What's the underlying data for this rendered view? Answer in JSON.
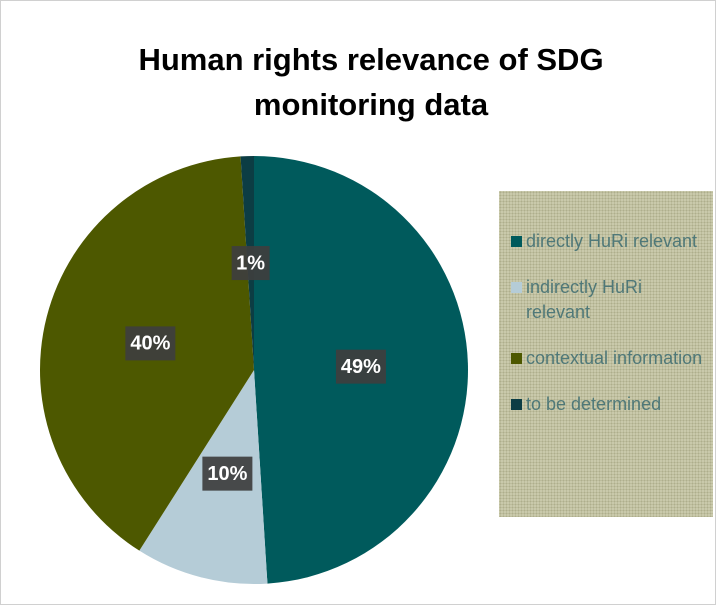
{
  "chart_data": {
    "type": "pie",
    "title": "Human rights relevance of SDG monitoring data",
    "categories": [
      "directly HuRi relevant",
      "indirectly HuRi relevant",
      "contextual information",
      "to be determined"
    ],
    "values": [
      49,
      10,
      40,
      1
    ],
    "value_labels": [
      "49%",
      "10%",
      "40%",
      "1%"
    ],
    "colors": [
      "#005a5c",
      "#b5ccd7",
      "#4d5800",
      "#0c3d44"
    ],
    "legend": "right"
  }
}
